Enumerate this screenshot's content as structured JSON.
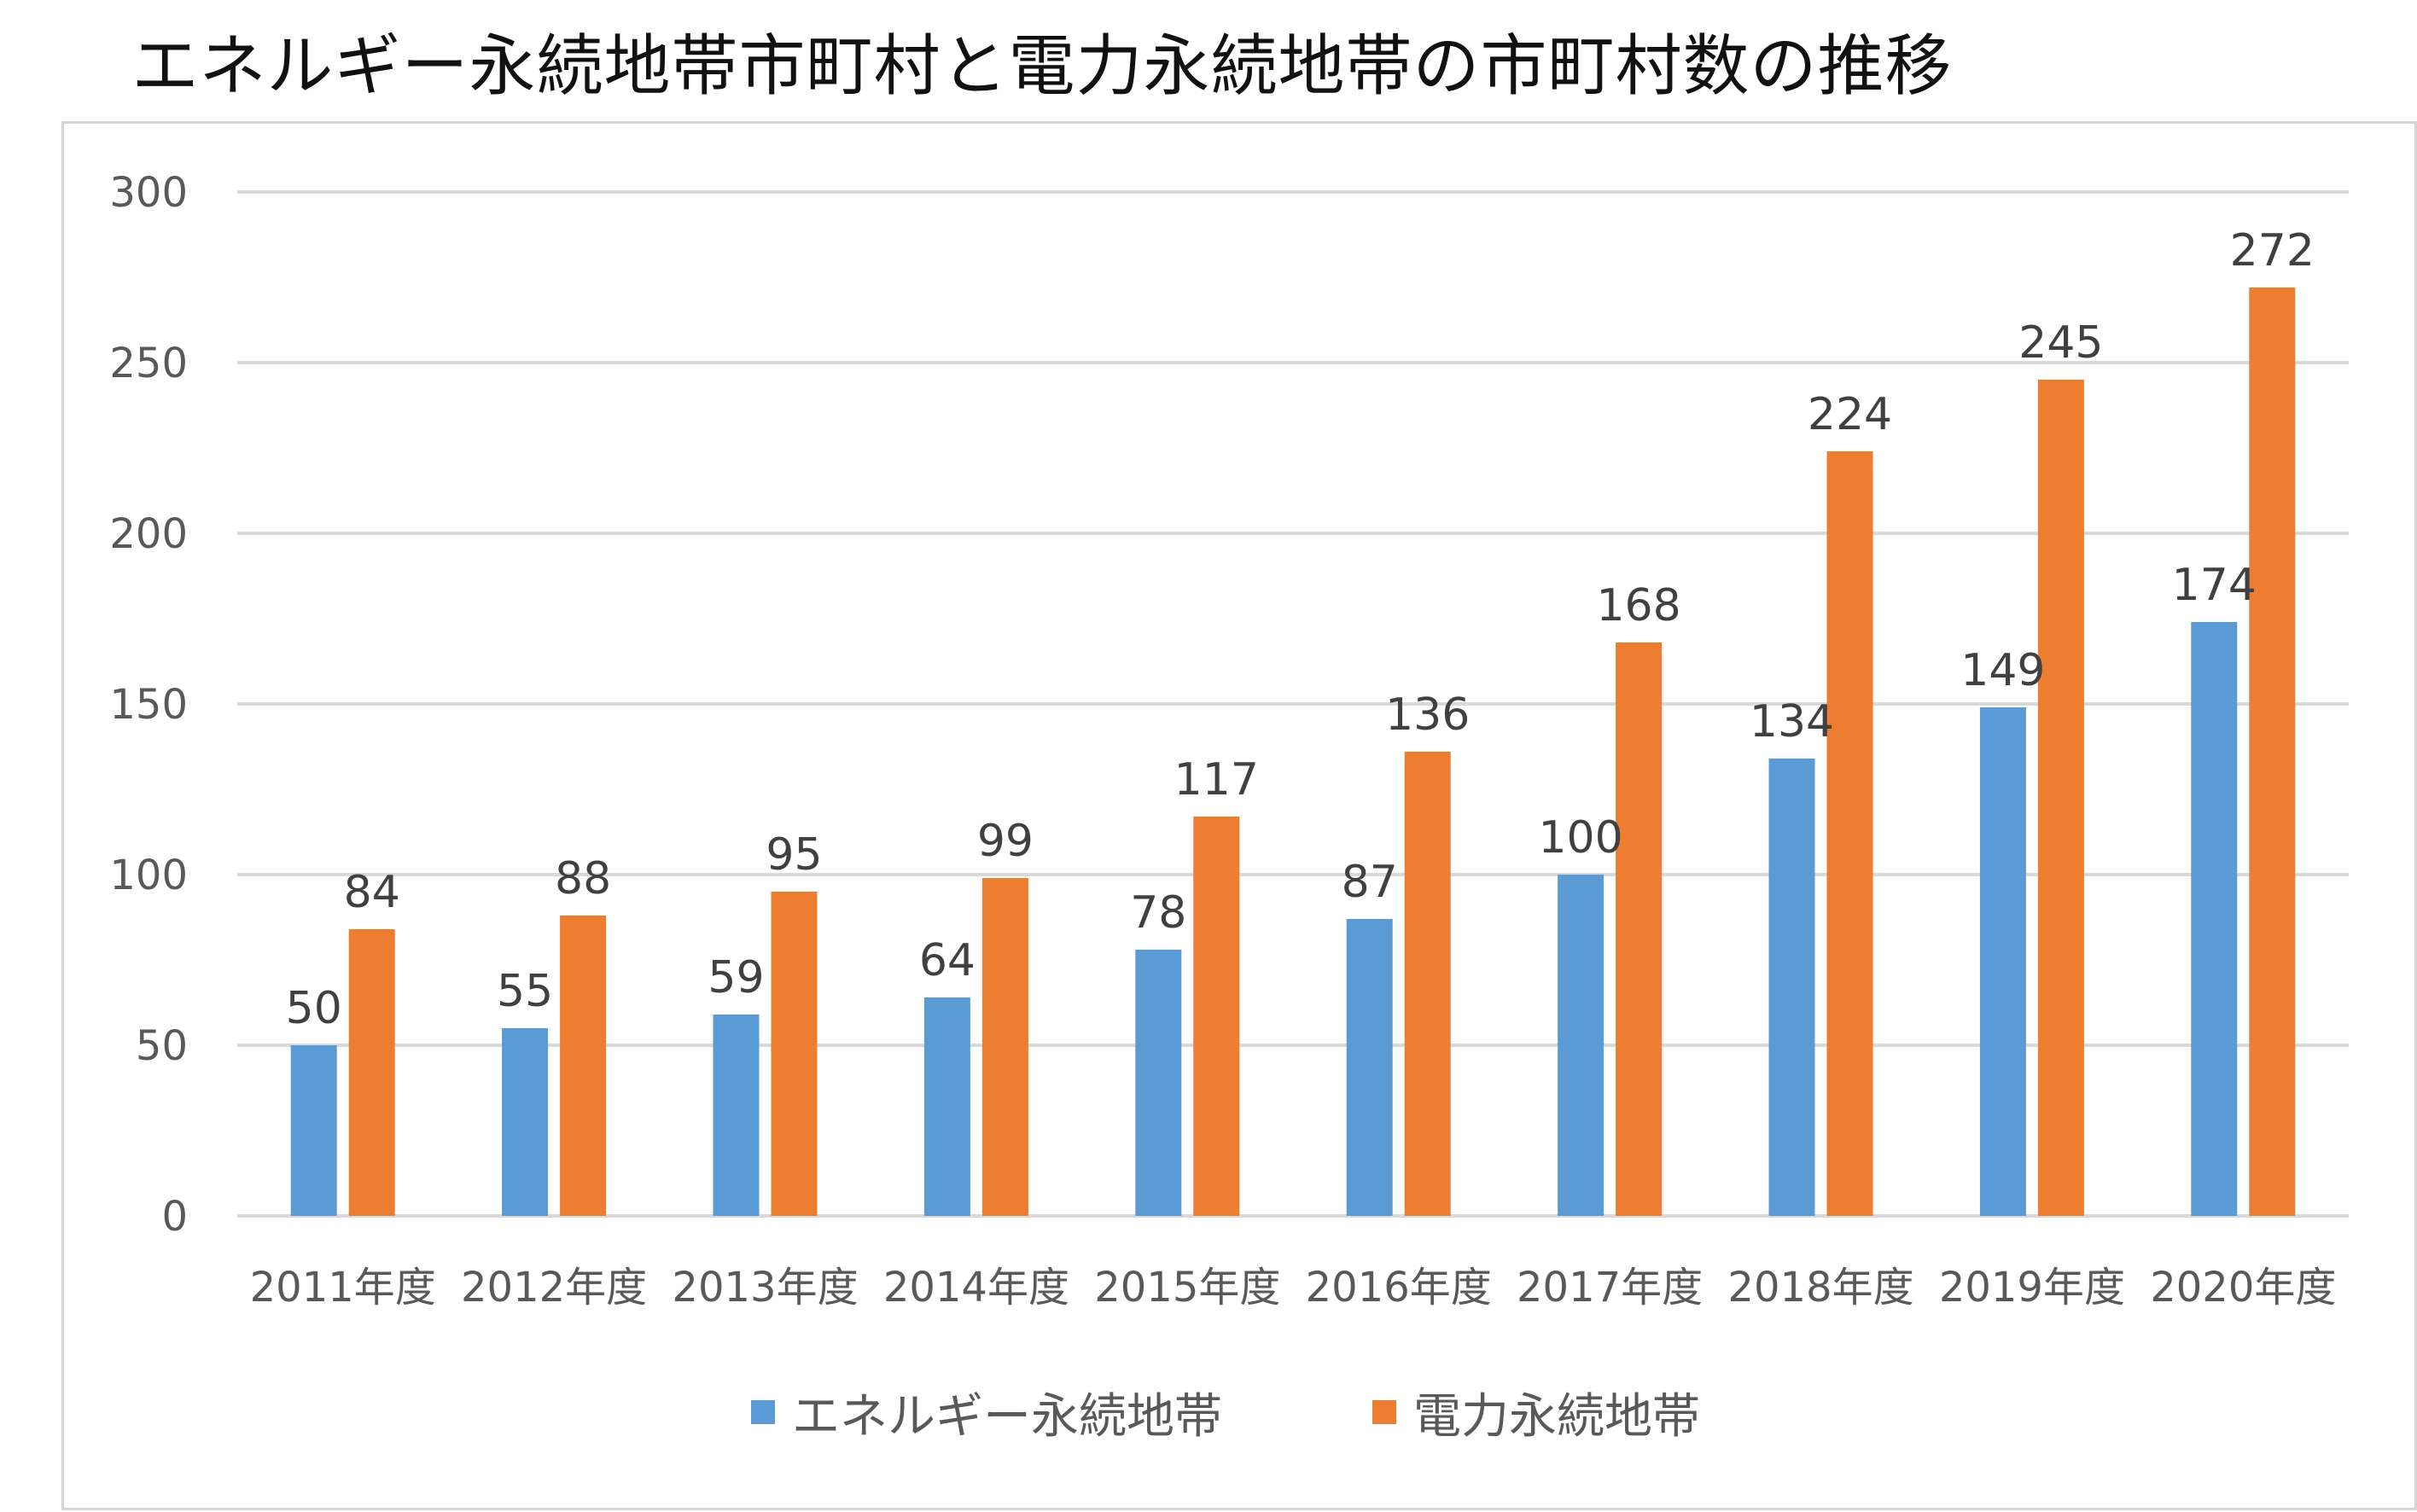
{
  "chart_data": {
    "type": "bar",
    "title": "エネルギー永続地帯市町村と電力永続地帯の市町村数の推移",
    "categories": [
      "2011年度",
      "2012年度",
      "2013年度",
      "2014年度",
      "2015年度",
      "2016年度",
      "2017年度",
      "2018年度",
      "2019年度",
      "2020年度"
    ],
    "series": [
      {
        "name": "エネルギー永続地帯",
        "color": "#5B9BD5",
        "values": [
          50,
          55,
          59,
          64,
          78,
          87,
          100,
          134,
          149,
          174
        ]
      },
      {
        "name": "電力永続地帯",
        "color": "#ED7D31",
        "values": [
          84,
          88,
          95,
          99,
          117,
          136,
          168,
          224,
          245,
          272
        ]
      }
    ],
    "yticks": [
      "0",
      "50",
      "100",
      "150",
      "200",
      "250",
      "300"
    ],
    "ylim": [
      0,
      300
    ],
    "xlabel": "",
    "ylabel": "",
    "grid": true,
    "legend_position": "bottom"
  },
  "colors": {
    "grid": "#d9d9d9",
    "axis": "#d9d9d9"
  }
}
